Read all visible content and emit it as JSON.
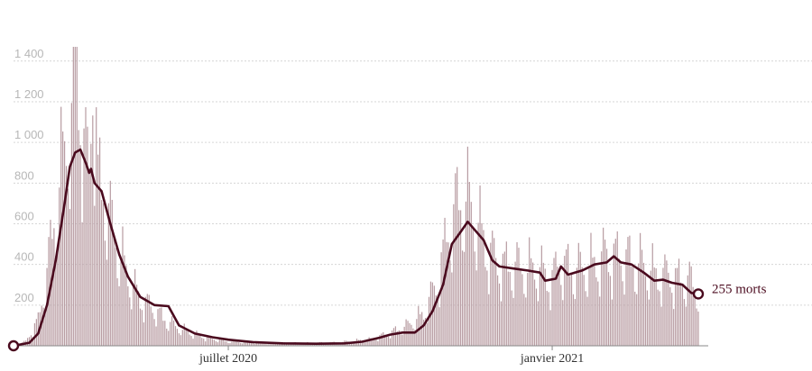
{
  "chart_data": {
    "type": "bar",
    "title": "",
    "xlabel": "",
    "ylabel": "",
    "ylim": [
      0,
      1470
    ],
    "y_ticks": [
      "200",
      "400",
      "600",
      "800",
      "1 000",
      "1 200",
      "1 400"
    ],
    "y_tick_values": [
      200,
      400,
      600,
      800,
      1000,
      1200,
      1400
    ],
    "x_ticks": [
      {
        "label": "juillet 2020",
        "date": "2020-07-01"
      },
      {
        "label": "janvier 2021",
        "date": "2021-01-01"
      }
    ],
    "x_range": [
      "2020-03-01",
      "2021-03-25"
    ],
    "grid": true,
    "colors": {
      "bars": "#b89ca2",
      "line": "#4a0a1e",
      "grid": "#d6d6d6",
      "ticks": "#b7b7b7"
    },
    "daily_deaths_anchors": [
      [
        "2020-03-01",
        0
      ],
      [
        "2020-03-08",
        20
      ],
      [
        "2020-03-15",
        120
      ],
      [
        "2020-03-20",
        330
      ],
      [
        "2020-03-25",
        650
      ],
      [
        "2020-03-30",
        900
      ],
      [
        "2020-04-03",
        1100
      ],
      [
        "2020-04-06",
        1380
      ],
      [
        "2020-04-08",
        1200
      ],
      [
        "2020-04-10",
        900
      ],
      [
        "2020-04-13",
        780
      ],
      [
        "2020-04-15",
        1400
      ],
      [
        "2020-04-18",
        760
      ],
      [
        "2020-04-22",
        700
      ],
      [
        "2020-04-26",
        540
      ],
      [
        "2020-05-01",
        420
      ],
      [
        "2020-05-06",
        300
      ],
      [
        "2020-05-12",
        220
      ],
      [
        "2020-05-18",
        180
      ],
      [
        "2020-05-25",
        130
      ],
      [
        "2020-06-01",
        90
      ],
      [
        "2020-06-10",
        60
      ],
      [
        "2020-06-20",
        35
      ],
      [
        "2020-07-01",
        20
      ],
      [
        "2020-07-20",
        15
      ],
      [
        "2020-08-10",
        12
      ],
      [
        "2020-09-01",
        15
      ],
      [
        "2020-09-20",
        30
      ],
      [
        "2020-10-01",
        60
      ],
      [
        "2020-10-10",
        90
      ],
      [
        "2020-10-20",
        150
      ],
      [
        "2020-10-28",
        300
      ],
      [
        "2020-11-02",
        500
      ],
      [
        "2020-11-08",
        650
      ],
      [
        "2020-11-12",
        700
      ],
      [
        "2020-11-18",
        600
      ],
      [
        "2020-11-25",
        450
      ],
      [
        "2020-12-01",
        380
      ],
      [
        "2020-12-15",
        360
      ],
      [
        "2020-12-22",
        360
      ],
      [
        "2021-01-01",
        310
      ],
      [
        "2021-01-05",
        380
      ],
      [
        "2021-01-15",
        350
      ],
      [
        "2021-01-25",
        380
      ],
      [
        "2021-02-01",
        420
      ],
      [
        "2021-02-10",
        410
      ],
      [
        "2021-02-20",
        380
      ],
      [
        "2021-03-01",
        330
      ],
      [
        "2021-03-10",
        320
      ],
      [
        "2021-03-20",
        300
      ],
      [
        "2021-03-25",
        255
      ]
    ],
    "rolling_average": [
      [
        "2020-03-01",
        0
      ],
      [
        "2020-03-10",
        15
      ],
      [
        "2020-03-15",
        60
      ],
      [
        "2020-03-20",
        200
      ],
      [
        "2020-03-25",
        420
      ],
      [
        "2020-03-30",
        700
      ],
      [
        "2020-04-02",
        880
      ],
      [
        "2020-04-05",
        950
      ],
      [
        "2020-04-08",
        965
      ],
      [
        "2020-04-11",
        900
      ],
      [
        "2020-04-13",
        850
      ],
      [
        "2020-04-14",
        870
      ],
      [
        "2020-04-16",
        800
      ],
      [
        "2020-04-20",
        760
      ],
      [
        "2020-04-25",
        600
      ],
      [
        "2020-04-30",
        450
      ],
      [
        "2020-05-05",
        340
      ],
      [
        "2020-05-12",
        240
      ],
      [
        "2020-05-20",
        200
      ],
      [
        "2020-05-28",
        195
      ],
      [
        "2020-06-03",
        100
      ],
      [
        "2020-06-12",
        60
      ],
      [
        "2020-06-22",
        42
      ],
      [
        "2020-07-01",
        30
      ],
      [
        "2020-07-15",
        18
      ],
      [
        "2020-08-01",
        12
      ],
      [
        "2020-08-20",
        10
      ],
      [
        "2020-09-05",
        12
      ],
      [
        "2020-09-15",
        20
      ],
      [
        "2020-09-25",
        40
      ],
      [
        "2020-10-01",
        55
      ],
      [
        "2020-10-08",
        65
      ],
      [
        "2020-10-15",
        65
      ],
      [
        "2020-10-20",
        100
      ],
      [
        "2020-10-25",
        170
      ],
      [
        "2020-10-31",
        300
      ],
      [
        "2020-11-05",
        500
      ],
      [
        "2020-11-10",
        560
      ],
      [
        "2020-11-14",
        610
      ],
      [
        "2020-11-18",
        570
      ],
      [
        "2020-11-23",
        520
      ],
      [
        "2020-11-28",
        420
      ],
      [
        "2020-12-02",
        390
      ],
      [
        "2020-12-10",
        380
      ],
      [
        "2020-12-18",
        370
      ],
      [
        "2020-12-25",
        360
      ],
      [
        "2020-12-28",
        320
      ],
      [
        "2021-01-03",
        330
      ],
      [
        "2021-01-06",
        390
      ],
      [
        "2021-01-10",
        350
      ],
      [
        "2021-01-18",
        370
      ],
      [
        "2021-01-25",
        400
      ],
      [
        "2021-02-01",
        410
      ],
      [
        "2021-02-05",
        440
      ],
      [
        "2021-02-09",
        410
      ],
      [
        "2021-02-15",
        400
      ],
      [
        "2021-02-22",
        360
      ],
      [
        "2021-02-28",
        320
      ],
      [
        "2021-03-05",
        325
      ],
      [
        "2021-03-10",
        310
      ],
      [
        "2021-03-16",
        300
      ],
      [
        "2021-03-21",
        260
      ],
      [
        "2021-03-25",
        255
      ]
    ],
    "end_label": "255 morts"
  }
}
